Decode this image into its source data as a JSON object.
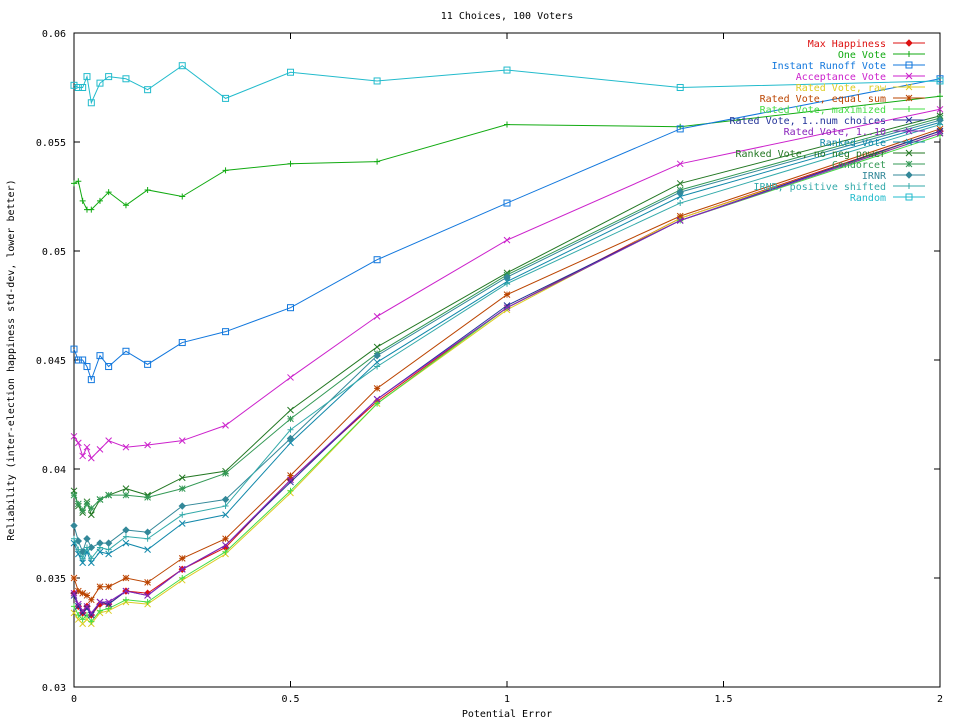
{
  "chart_data": {
    "type": "line",
    "title": "11 Choices, 100 Voters",
    "xlabel": "Potential Error",
    "ylabel": "Reliability (inter-election happiness std-dev, lower better)",
    "xlim": [
      0,
      2
    ],
    "ylim": [
      0.03,
      0.06
    ],
    "xticks": [
      "0",
      "0.5",
      "1",
      "1.5",
      "2"
    ],
    "xtick_values": [
      0,
      0.5,
      1,
      1.5,
      2
    ],
    "yticks": [
      "0.03",
      "0.035",
      "0.04",
      "0.045",
      "0.05",
      "0.055",
      "0.06"
    ],
    "ytick_values": [
      0.03,
      0.035,
      0.04,
      0.045,
      0.05,
      0.055,
      0.06
    ],
    "legend_position": "top-right",
    "grid": false,
    "x": [
      0,
      0.01,
      0.02,
      0.03,
      0.04,
      0.06,
      0.08,
      0.12,
      0.17,
      0.25,
      0.35,
      0.5,
      0.7,
      1.0,
      1.4,
      2.0
    ],
    "series": [
      {
        "name": "Max Happiness",
        "color": "#dd1111",
        "marker": "diamond",
        "values": [
          0.0343,
          0.0337,
          0.0334,
          0.0337,
          0.0333,
          0.0338,
          0.0338,
          0.0344,
          0.0343,
          0.0354,
          0.0364,
          0.0395,
          0.0431,
          0.0474,
          0.0515,
          0.0555
        ]
      },
      {
        "name": "One Vote",
        "color": "#11aa11",
        "marker": "plus",
        "values": [
          0.0531,
          0.0532,
          0.0523,
          0.0519,
          0.0519,
          0.0523,
          0.0527,
          0.0521,
          0.0528,
          0.0525,
          0.0537,
          0.054,
          0.0541,
          0.0558,
          0.0557,
          0.0571
        ]
      },
      {
        "name": "Instant Runoff Vote",
        "color": "#1177dd",
        "marker": "square",
        "values": [
          0.0455,
          0.045,
          0.045,
          0.0447,
          0.0441,
          0.0452,
          0.0447,
          0.0454,
          0.0448,
          0.0458,
          0.0463,
          0.0474,
          0.0496,
          0.0522,
          0.0556,
          0.0579
        ]
      },
      {
        "name": "Acceptance Vote",
        "color": "#cc22cc",
        "marker": "x",
        "values": [
          0.0415,
          0.0412,
          0.0406,
          0.041,
          0.0405,
          0.0409,
          0.0413,
          0.041,
          0.0411,
          0.0413,
          0.042,
          0.0442,
          0.047,
          0.0505,
          0.054,
          0.0565
        ]
      },
      {
        "name": "Rated Vote, raw",
        "color": "#ddcc22",
        "marker": "x",
        "values": [
          0.0334,
          0.0331,
          0.0329,
          0.0331,
          0.0329,
          0.0334,
          0.0335,
          0.0339,
          0.0338,
          0.0349,
          0.0361,
          0.0389,
          0.043,
          0.0473,
          0.0515,
          0.0554
        ]
      },
      {
        "name": "Rated Vote, equal sum",
        "color": "#bb4400",
        "marker": "star",
        "values": [
          0.035,
          0.0344,
          0.0343,
          0.0342,
          0.034,
          0.0346,
          0.0346,
          0.035,
          0.0348,
          0.0359,
          0.0368,
          0.0397,
          0.0437,
          0.048,
          0.0516,
          0.0556
        ]
      },
      {
        "name": "Rated Vote, maximized",
        "color": "#44dd44",
        "marker": "plus",
        "values": [
          0.0337,
          0.0333,
          0.0331,
          0.0333,
          0.033,
          0.0335,
          0.0336,
          0.034,
          0.0339,
          0.035,
          0.0362,
          0.039,
          0.043,
          0.0474,
          0.0514,
          0.0553
        ]
      },
      {
        "name": "Rated Vote, 1..num choices",
        "color": "#223399",
        "marker": "x",
        "values": [
          0.0342,
          0.0337,
          0.0334,
          0.0336,
          0.0333,
          0.0339,
          0.0338,
          0.0344,
          0.0342,
          0.0354,
          0.0365,
          0.0394,
          0.0432,
          0.0475,
          0.0514,
          0.0555
        ]
      },
      {
        "name": "Rated Vote, 1..10",
        "color": "#8822bb",
        "marker": "x",
        "values": [
          0.0343,
          0.0338,
          0.0335,
          0.0337,
          0.0334,
          0.0339,
          0.0339,
          0.0344,
          0.0342,
          0.0354,
          0.0365,
          0.0395,
          0.0432,
          0.0474,
          0.0514,
          0.0554
        ]
      },
      {
        "name": "Ranked Vote",
        "color": "#1188aa",
        "marker": "x",
        "values": [
          0.0366,
          0.0361,
          0.0357,
          0.0362,
          0.0357,
          0.0362,
          0.0361,
          0.0366,
          0.0363,
          0.0375,
          0.0379,
          0.0412,
          0.0449,
          0.0486,
          0.0525,
          0.0559
        ]
      },
      {
        "name": "Ranked Vote, no neg power",
        "color": "#227722",
        "marker": "x",
        "values": [
          0.039,
          0.0383,
          0.038,
          0.0385,
          0.0379,
          0.0386,
          0.0388,
          0.0391,
          0.0388,
          0.0396,
          0.0399,
          0.0427,
          0.0456,
          0.049,
          0.0531,
          0.0562
        ]
      },
      {
        "name": "Condorcet",
        "color": "#339955",
        "marker": "star",
        "values": [
          0.0388,
          0.0384,
          0.0381,
          0.0384,
          0.0382,
          0.0386,
          0.0388,
          0.0388,
          0.0387,
          0.0391,
          0.0398,
          0.0423,
          0.0453,
          0.0489,
          0.0528,
          0.0561
        ]
      },
      {
        "name": "IRNR",
        "color": "#338899",
        "marker": "diamond",
        "values": [
          0.0374,
          0.0367,
          0.0362,
          0.0368,
          0.0364,
          0.0366,
          0.0366,
          0.0372,
          0.0371,
          0.0383,
          0.0386,
          0.0414,
          0.0452,
          0.0488,
          0.0527,
          0.056
        ]
      },
      {
        "name": "IRNR, positive shifted",
        "color": "#33aaaa",
        "marker": "plus",
        "values": [
          0.0368,
          0.0363,
          0.0359,
          0.0364,
          0.0359,
          0.0364,
          0.0363,
          0.0369,
          0.0368,
          0.0379,
          0.0383,
          0.0418,
          0.0447,
          0.0485,
          0.0522,
          0.0558
        ]
      },
      {
        "name": "Random",
        "color": "#22bbcc",
        "marker": "square",
        "values": [
          0.0576,
          0.0575,
          0.0575,
          0.058,
          0.0568,
          0.0577,
          0.058,
          0.0579,
          0.0574,
          0.0585,
          0.057,
          0.0582,
          0.0578,
          0.0583,
          0.0575,
          0.0578
        ]
      }
    ]
  }
}
